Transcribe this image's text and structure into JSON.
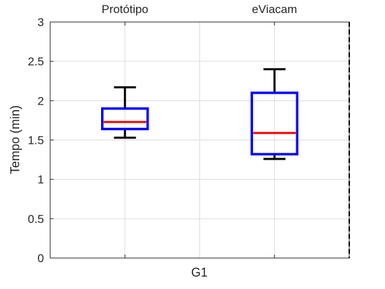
{
  "chart_data": {
    "type": "box",
    "ylabel": "Tempo (min)",
    "xlabel": "G1",
    "ylim": [
      0,
      3
    ],
    "yticks": [
      0,
      0.5,
      1,
      1.5,
      2,
      2.5,
      3
    ],
    "ytick_labels": [
      "0",
      "0.5",
      "1",
      "1.5",
      "2",
      "2.5",
      "3"
    ],
    "grid": true,
    "categories": [
      "Protótipo",
      "eViacam"
    ],
    "boxes": [
      {
        "name": "Protótipo",
        "whisker_low": 1.53,
        "q1": 1.64,
        "median": 1.73,
        "q3": 1.9,
        "whisker_high": 2.17
      },
      {
        "name": "eViacam",
        "whisker_low": 1.26,
        "q1": 1.32,
        "median": 1.59,
        "q3": 2.1,
        "whisker_high": 2.4
      }
    ],
    "colors": {
      "box": "#0000ff",
      "median": "#ff0000",
      "whisker": "#000000",
      "separator": "#000000"
    }
  }
}
